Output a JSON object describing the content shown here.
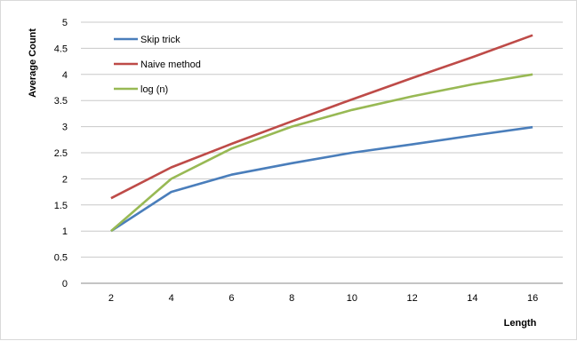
{
  "chart_data": {
    "type": "line",
    "title": "",
    "xlabel": "Length",
    "ylabel": "Average Count",
    "x": [
      2,
      4,
      6,
      8,
      10,
      12,
      14,
      16
    ],
    "xticks": [
      "2",
      "4",
      "6",
      "8",
      "10",
      "12",
      "14",
      "16"
    ],
    "yticks": [
      "0",
      "0.5",
      "1",
      "1.5",
      "2",
      "2.5",
      "3",
      "3.5",
      "4",
      "4.5",
      "5"
    ],
    "ylim": [
      0,
      5
    ],
    "grid": "horizontal",
    "legend": "top-left",
    "series": [
      {
        "name": "Skip trick",
        "color": "#4a7ebb",
        "values": [
          1,
          1.75,
          2.08,
          2.3,
          2.5,
          2.66,
          2.83,
          2.99
        ]
      },
      {
        "name": "Naive method",
        "color": "#be4b48",
        "values": [
          1.63,
          2.22,
          2.67,
          3.1,
          3.52,
          3.93,
          4.33,
          4.75
        ]
      },
      {
        "name": "log (n)",
        "color": "#98b954",
        "values": [
          1,
          2,
          2.58,
          3,
          3.32,
          3.58,
          3.81,
          4
        ]
      }
    ]
  }
}
